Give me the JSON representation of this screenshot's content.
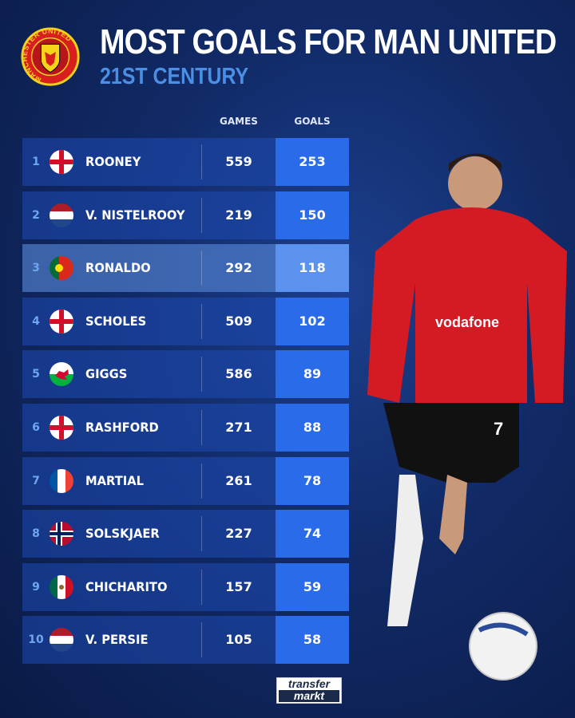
{
  "header": {
    "title": "MOST GOALS FOR MAN UNITED",
    "subtitle": "21ST CENTURY",
    "crest_text": "MANCHESTER UNITED"
  },
  "chart_data": {
    "type": "table",
    "columns": [
      "GAMES",
      "GOALS"
    ],
    "rows": [
      {
        "rank": "1",
        "name": "ROONEY",
        "flag": "england",
        "games": 559,
        "goals": 253
      },
      {
        "rank": "2",
        "name": "V. NISTELROOY",
        "flag": "netherlands",
        "games": 219,
        "goals": 150
      },
      {
        "rank": "3",
        "name": "RONALDO",
        "flag": "portugal",
        "games": 292,
        "goals": 118,
        "highlight": true
      },
      {
        "rank": "4",
        "name": "SCHOLES",
        "flag": "england",
        "games": 509,
        "goals": 102
      },
      {
        "rank": "5",
        "name": "GIGGS",
        "flag": "wales",
        "games": 586,
        "goals": 89
      },
      {
        "rank": "6",
        "name": "RASHFORD",
        "flag": "england",
        "games": 271,
        "goals": 88
      },
      {
        "rank": "7",
        "name": "MARTIAL",
        "flag": "france",
        "games": 261,
        "goals": 78
      },
      {
        "rank": "8",
        "name": "SOLSKJAER",
        "flag": "norway",
        "games": 227,
        "goals": 74
      },
      {
        "rank": "9",
        "name": "CHICHARITO",
        "flag": "mexico",
        "games": 157,
        "goals": 59
      },
      {
        "rank": "10",
        "name": "V. PERSIE",
        "flag": "netherlands",
        "games": 105,
        "goals": 58
      }
    ]
  },
  "colors": {
    "accent": "#4a8fe6",
    "goals_cell": "#2a6bea",
    "row": "#1e4bb4"
  },
  "footer": {
    "logo_line1": "transfer",
    "logo_line2": "markt"
  },
  "photo": {
    "shirt_sponsor": "vodafone",
    "shirt_number": "7"
  }
}
